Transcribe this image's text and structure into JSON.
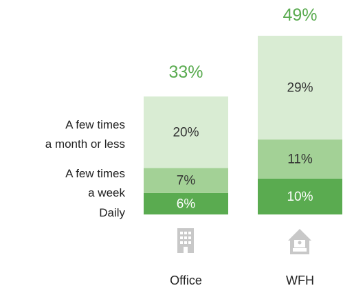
{
  "chart_data": {
    "type": "stacked_bar",
    "categories": [
      "Office",
      "WFH"
    ],
    "series": [
      {
        "name": "Daily",
        "color": "#5aab50",
        "values": [
          6,
          10
        ],
        "value_labels": [
          "6%",
          "10%"
        ]
      },
      {
        "name": "A few times\na week",
        "color": "#a3d196",
        "values": [
          7,
          11
        ],
        "value_labels": [
          "7%",
          "11%"
        ]
      },
      {
        "name": "A few times\na month or less",
        "color": "#d9ecd3",
        "values": [
          20,
          29
        ],
        "value_labels": [
          "20%",
          "29%"
        ]
      }
    ],
    "totals": [
      33,
      49
    ],
    "total_labels": [
      "33%",
      "49%"
    ],
    "total_color": "#5aab50"
  }
}
